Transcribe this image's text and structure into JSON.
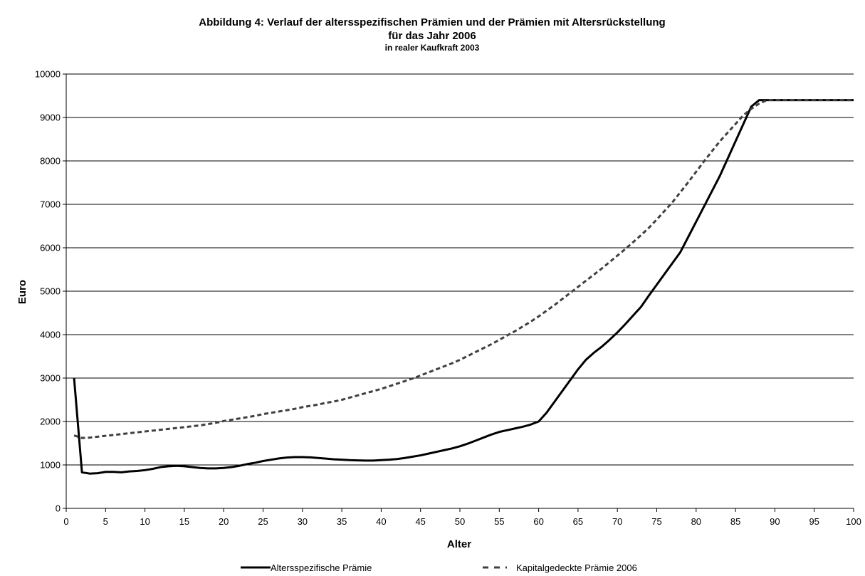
{
  "chart_data": {
    "type": "line",
    "title": "Abbildung 4: Verlauf der altersspezifischen Prämien und der Prämien mit Altersrückstellung",
    "title_line2": "für das Jahr 2006",
    "subtitle": "in realer Kaufkraft 2003",
    "xlabel": "Alter",
    "ylabel": "Euro",
    "xlim": [
      0,
      100
    ],
    "ylim": [
      0,
      10000
    ],
    "x_ticks": [
      0,
      5,
      10,
      15,
      20,
      25,
      30,
      35,
      40,
      45,
      50,
      55,
      60,
      65,
      70,
      75,
      80,
      85,
      90,
      95,
      100
    ],
    "y_ticks": [
      0,
      1000,
      2000,
      3000,
      4000,
      5000,
      6000,
      7000,
      8000,
      9000,
      10000
    ],
    "grid": "horizontal",
    "legend_position": "bottom",
    "series": [
      {
        "name": "Altersspezifische Prämie",
        "style": "solid",
        "color": "#000000",
        "x": [
          1,
          2,
          3,
          4,
          5,
          6,
          7,
          8,
          9,
          10,
          11,
          12,
          13,
          14,
          15,
          16,
          17,
          18,
          19,
          20,
          21,
          22,
          23,
          24,
          25,
          26,
          27,
          28,
          29,
          30,
          31,
          32,
          33,
          34,
          35,
          36,
          37,
          38,
          39,
          40,
          41,
          42,
          43,
          44,
          45,
          46,
          47,
          48,
          49,
          50,
          51,
          52,
          53,
          54,
          55,
          56,
          57,
          58,
          59,
          60,
          61,
          62,
          63,
          64,
          65,
          66,
          67,
          68,
          69,
          70,
          71,
          72,
          73,
          74,
          75,
          76,
          77,
          78,
          79,
          80,
          81,
          82,
          83,
          84,
          85,
          86,
          87,
          88,
          89,
          90,
          91,
          92,
          93,
          94,
          95,
          96,
          97,
          98,
          99,
          100
        ],
        "y": [
          3000,
          830,
          800,
          810,
          840,
          840,
          830,
          850,
          860,
          880,
          910,
          950,
          970,
          980,
          970,
          950,
          930,
          920,
          920,
          930,
          950,
          980,
          1020,
          1050,
          1090,
          1120,
          1150,
          1170,
          1180,
          1180,
          1175,
          1160,
          1145,
          1130,
          1120,
          1110,
          1105,
          1100,
          1100,
          1110,
          1120,
          1135,
          1160,
          1190,
          1220,
          1260,
          1300,
          1340,
          1380,
          1430,
          1490,
          1560,
          1630,
          1700,
          1760,
          1800,
          1840,
          1880,
          1930,
          2000,
          2200,
          2450,
          2700,
          2950,
          3200,
          3420,
          3580,
          3720,
          3880,
          4050,
          4240,
          4440,
          4640,
          4900,
          5150,
          5400,
          5650,
          5900,
          6250,
          6600,
          6950,
          7300,
          7650,
          8050,
          8450,
          8850,
          9250,
          9400,
          9400,
          9400,
          9400,
          9400,
          9400,
          9400,
          9400,
          9400,
          9400,
          9400,
          9400,
          9400
        ]
      },
      {
        "name": "Kapitalgedeckte Prämie 2006",
        "style": "dashed",
        "color": "#404040",
        "x": [
          1,
          2,
          3,
          4,
          5,
          6,
          7,
          8,
          9,
          10,
          11,
          12,
          13,
          14,
          15,
          16,
          17,
          18,
          19,
          20,
          21,
          22,
          23,
          24,
          25,
          26,
          27,
          28,
          29,
          30,
          31,
          32,
          33,
          34,
          35,
          36,
          37,
          38,
          39,
          40,
          41,
          42,
          43,
          44,
          45,
          46,
          47,
          48,
          49,
          50,
          51,
          52,
          53,
          54,
          55,
          56,
          57,
          58,
          59,
          60,
          61,
          62,
          63,
          64,
          65,
          66,
          67,
          68,
          69,
          70,
          71,
          72,
          73,
          74,
          75,
          76,
          77,
          78,
          79,
          80,
          81,
          82,
          83,
          84,
          85,
          86,
          87,
          88,
          89,
          90,
          91,
          92,
          93,
          94,
          95,
          96,
          97,
          98,
          99,
          100
        ],
        "y": [
          1680,
          1620,
          1630,
          1650,
          1670,
          1690,
          1710,
          1730,
          1750,
          1770,
          1790,
          1810,
          1830,
          1850,
          1870,
          1890,
          1910,
          1940,
          1970,
          2010,
          2040,
          2070,
          2100,
          2130,
          2170,
          2200,
          2230,
          2260,
          2290,
          2330,
          2360,
          2390,
          2430,
          2460,
          2500,
          2550,
          2600,
          2650,
          2700,
          2750,
          2810,
          2870,
          2930,
          2990,
          3060,
          3130,
          3200,
          3270,
          3340,
          3420,
          3510,
          3600,
          3690,
          3780,
          3880,
          3980,
          4080,
          4190,
          4300,
          4420,
          4550,
          4680,
          4820,
          4960,
          5100,
          5240,
          5380,
          5520,
          5670,
          5820,
          5970,
          6130,
          6290,
          6460,
          6650,
          6850,
          7050,
          7280,
          7510,
          7750,
          7990,
          8220,
          8450,
          8650,
          8850,
          9050,
          9200,
          9320,
          9400,
          9400,
          9400,
          9400,
          9400,
          9400,
          9400,
          9400,
          9400,
          9400,
          9400,
          9400
        ]
      }
    ]
  }
}
